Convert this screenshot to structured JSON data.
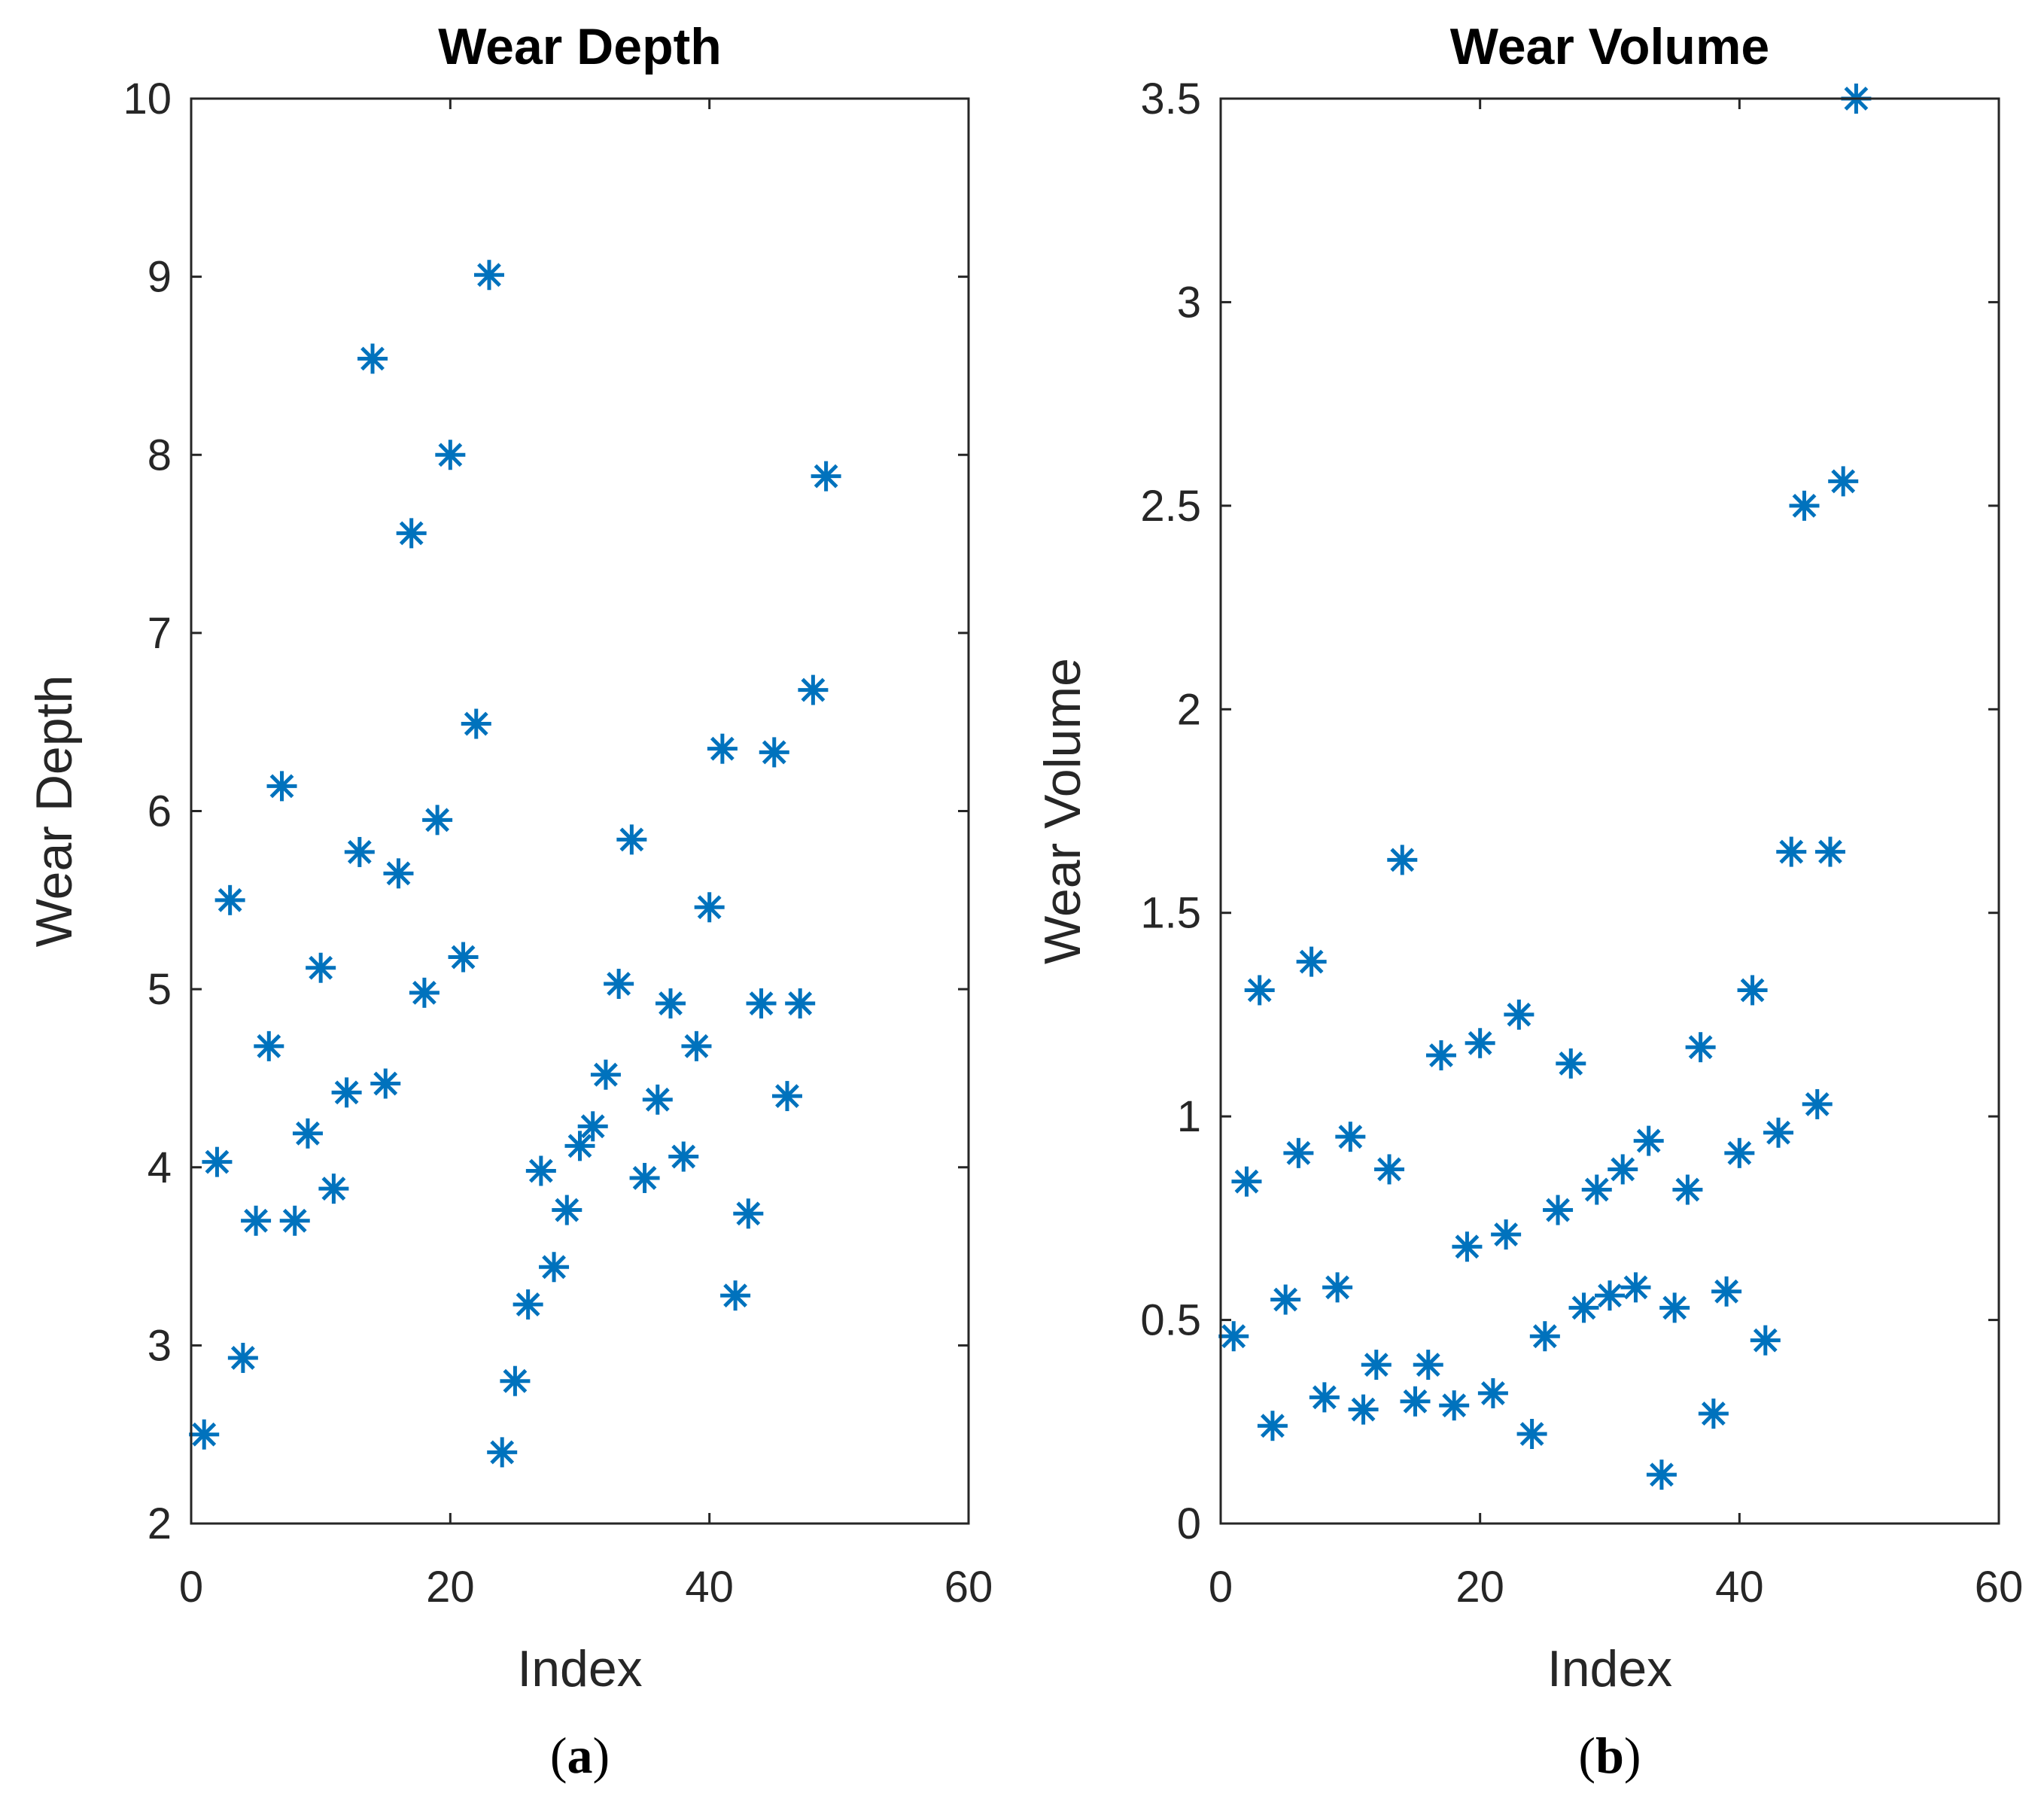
{
  "chart_data": [
    {
      "type": "scatter",
      "panel_label": "a",
      "title": "Wear Depth",
      "xlabel": "Index",
      "ylabel": "Wear Depth",
      "xlim": [
        0,
        60
      ],
      "ylim": [
        2,
        10
      ],
      "xticks": [
        0,
        20,
        40,
        60
      ],
      "yticks": [
        2,
        3,
        4,
        5,
        6,
        7,
        8,
        9,
        10
      ],
      "marker": "asterisk",
      "color": "#0072BD",
      "series": [
        {
          "name": "Wear Depth",
          "x": [
            1,
            2,
            3,
            4,
            5,
            6,
            7,
            8,
            9,
            10,
            11,
            12,
            13,
            14,
            15,
            16,
            17,
            18,
            19,
            20,
            21,
            22,
            23,
            24,
            25,
            26,
            27,
            28,
            29,
            30,
            31,
            32,
            33,
            34,
            35,
            36,
            37,
            38,
            39,
            40,
            41,
            42,
            43,
            44,
            45,
            46,
            47,
            48,
            49
          ],
          "y": [
            2.5,
            4.03,
            5.5,
            2.93,
            3.7,
            4.68,
            6.14,
            3.7,
            4.19,
            5.12,
            3.88,
            4.42,
            5.77,
            8.54,
            4.47,
            5.65,
            7.56,
            4.98,
            5.95,
            8.0,
            5.18,
            6.49,
            9.01,
            2.4,
            2.8,
            3.23,
            3.98,
            3.44,
            3.76,
            4.12,
            4.23,
            4.52,
            5.03,
            5.84,
            3.94,
            4.38,
            4.92,
            4.06,
            4.68,
            5.46,
            6.35,
            3.28,
            3.74,
            4.92,
            6.33,
            4.4,
            4.92,
            6.68,
            7.88
          ]
        }
      ]
    },
    {
      "type": "scatter",
      "panel_label": "b",
      "title": "Wear Volume",
      "xlabel": "Index",
      "ylabel": "Wear Volume",
      "xlim": [
        0,
        60
      ],
      "ylim": [
        0,
        3.5
      ],
      "xticks": [
        0,
        20,
        40,
        60
      ],
      "yticks": [
        0,
        0.5,
        1,
        1.5,
        2,
        2.5,
        3,
        3.5
      ],
      "marker": "asterisk",
      "color": "#0072BD",
      "series": [
        {
          "name": "Wear Volume",
          "x": [
            1,
            2,
            3,
            4,
            5,
            6,
            7,
            8,
            9,
            10,
            11,
            12,
            13,
            14,
            15,
            16,
            17,
            18,
            19,
            20,
            21,
            22,
            23,
            24,
            25,
            26,
            27,
            28,
            29,
            30,
            31,
            32,
            33,
            34,
            35,
            36,
            37,
            38,
            39,
            40,
            41,
            42,
            43,
            44,
            45,
            46,
            47,
            48,
            49
          ],
          "y": [
            0.46,
            0.84,
            1.31,
            0.24,
            0.55,
            0.91,
            1.38,
            0.31,
            0.58,
            0.95,
            0.28,
            0.39,
            0.87,
            1.63,
            0.3,
            0.39,
            1.15,
            0.29,
            0.68,
            1.18,
            0.32,
            0.71,
            1.25,
            0.22,
            0.46,
            0.77,
            1.13,
            0.53,
            0.82,
            0.56,
            0.87,
            0.58,
            0.94,
            0.12,
            0.53,
            0.82,
            1.17,
            0.27,
            0.57,
            0.91,
            1.31,
            0.45,
            0.96,
            1.65,
            2.5,
            1.03,
            1.65,
            2.56,
            3.5
          ]
        }
      ]
    }
  ]
}
